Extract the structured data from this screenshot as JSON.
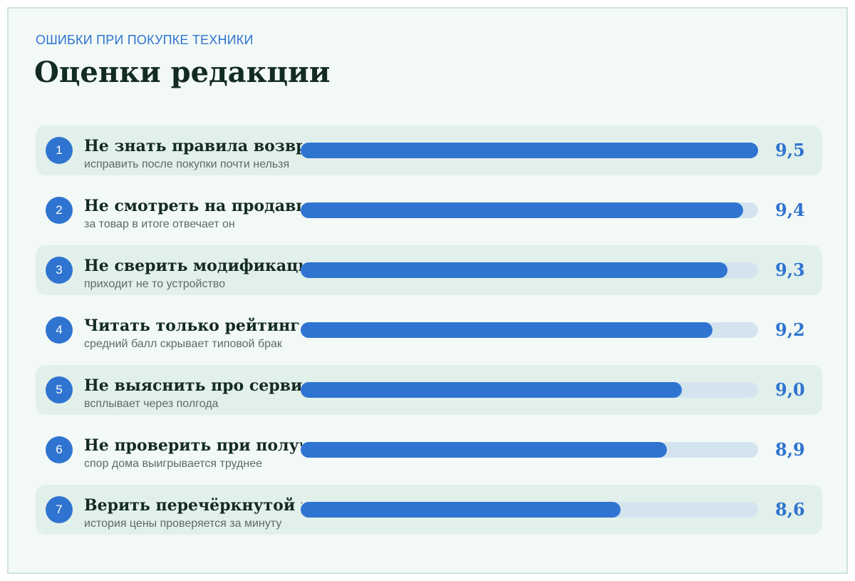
{
  "header": {
    "kicker": "ОШИБКИ ПРИ ПОКУПКЕ ТЕХНИКИ",
    "title": "Оценки редакции"
  },
  "colors": {
    "accent": "#2f74d0",
    "track": "#d4e4ef",
    "row_shade": "#e2f0eb",
    "background": "#f3f9f7"
  },
  "chart_data": {
    "type": "bar",
    "orientation": "horizontal",
    "title": "Оценки редакции",
    "xlim": [
      8.0,
      9.5
    ],
    "items": [
      {
        "rank": "1",
        "label": "Не знать правила возврата",
        "sub": "исправить после покупки почти нельзя",
        "value": 9.5,
        "value_label": "9,5"
      },
      {
        "rank": "2",
        "label": "Не смотреть на продавца",
        "sub": "за товар в итоге отвечает он",
        "value": 9.4,
        "value_label": "9,4"
      },
      {
        "rank": "3",
        "label": "Не сверить модификацию",
        "sub": "приходит не то устройство",
        "value": 9.3,
        "value_label": "9,3"
      },
      {
        "rank": "4",
        "label": "Читать только рейтинг",
        "sub": "средний балл скрывает типовой брак",
        "value": 9.2,
        "value_label": "9,2"
      },
      {
        "rank": "5",
        "label": "Не выяснить про сервис",
        "sub": "всплывает через полгода",
        "value": 9.0,
        "value_label": "9,0"
      },
      {
        "rank": "6",
        "label": "Не проверить при получении",
        "sub": "спор дома выигрывается труднее",
        "value": 8.9,
        "value_label": "8,9"
      },
      {
        "rank": "7",
        "label": "Верить перечёркнутой цене",
        "sub": "история цены проверяется за минуту",
        "value": 8.6,
        "value_label": "8,6"
      }
    ]
  }
}
